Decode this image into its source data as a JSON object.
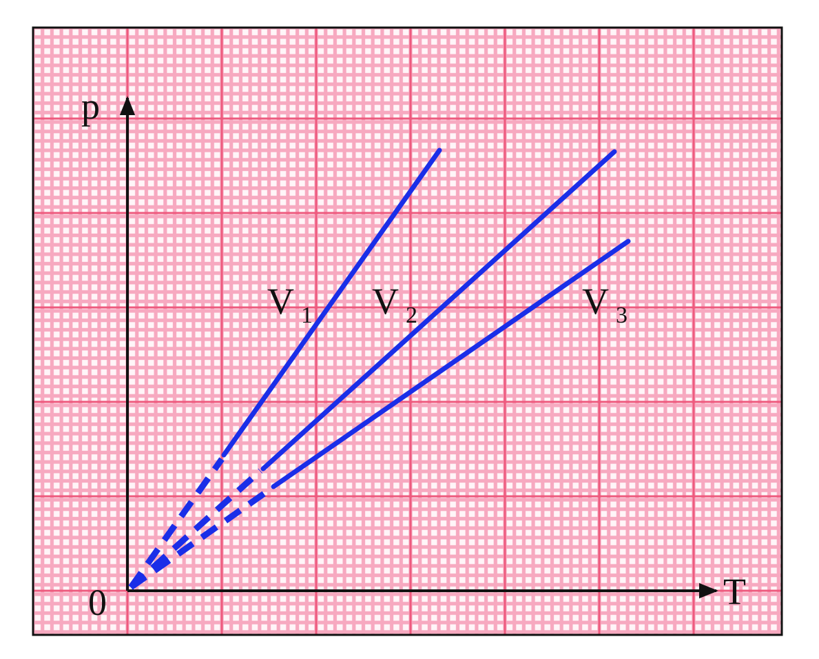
{
  "axes": {
    "y_label": "p",
    "x_label": "T",
    "origin": "0"
  },
  "lines": [
    {
      "name": "V",
      "subscript": "1"
    },
    {
      "name": "V",
      "subscript": "2"
    },
    {
      "name": "V",
      "subscript": "3"
    }
  ]
}
